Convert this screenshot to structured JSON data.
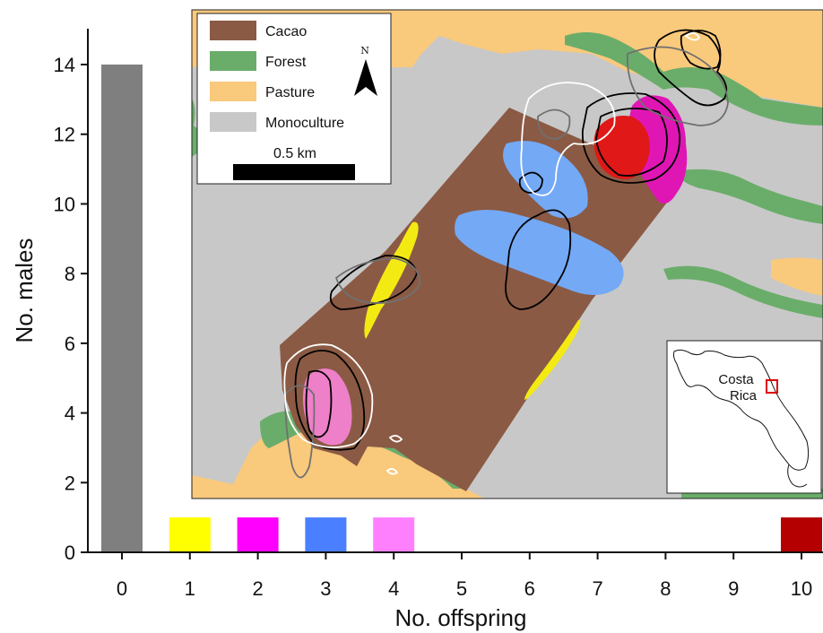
{
  "chart_data": {
    "type": "bar",
    "xlabel": "No. offspring",
    "ylabel": "No. males",
    "categories": [
      "0",
      "1",
      "2",
      "3",
      "4",
      "5",
      "6",
      "7",
      "8",
      "9",
      "10"
    ],
    "values": [
      14,
      1,
      1,
      1,
      1,
      0,
      0,
      0,
      0,
      0,
      1
    ],
    "bar_colors": [
      "#7f7f7f",
      "#ffff00",
      "#ff00ff",
      "#4a7fff",
      "#ff80ff",
      null,
      null,
      null,
      null,
      null,
      "#b40000"
    ],
    "ylim": [
      0,
      15
    ],
    "yticks": [
      0,
      2,
      4,
      6,
      8,
      10,
      12,
      14
    ],
    "grid": false
  },
  "map": {
    "legend": [
      {
        "label": "Cacao",
        "color": "#8b5a44"
      },
      {
        "label": "Forest",
        "color": "#6aad6a"
      },
      {
        "label": "Pasture",
        "color": "#f9c97c"
      },
      {
        "label": "Monoculture",
        "color": "#c8c8c8"
      }
    ],
    "north_label": "N",
    "scale_label": "0.5 km",
    "inset_label_line1": "Costa",
    "inset_label_line2": "Rica",
    "colors": {
      "cacao": "#8b5a44",
      "forest": "#6aad6a",
      "pasture": "#f9c97c",
      "monoculture": "#c8c8c8",
      "blue_range": "#74a9f5",
      "yellow_range": "#f3ea14",
      "magenta_range": "#e016b4",
      "pink_range": "#ee7fc9",
      "red_range": "#e01818"
    }
  }
}
